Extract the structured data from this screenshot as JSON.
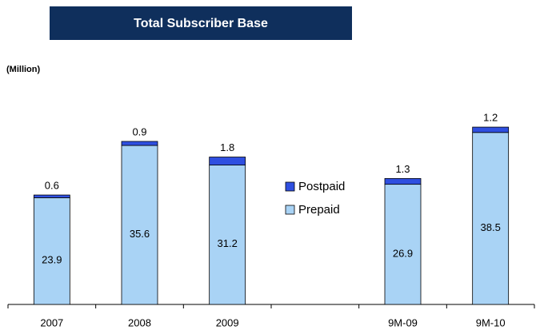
{
  "chart_data": {
    "type": "stacked-bar",
    "title": "Total Subscriber Base",
    "unit_label": "(Million)",
    "categories": [
      "2007",
      "2008",
      "2009",
      null,
      "9M-09",
      "9M-10"
    ],
    "series": [
      {
        "name": "Prepaid",
        "color": "#a9d3f5",
        "values": [
          23.9,
          35.6,
          31.2,
          null,
          26.9,
          38.5
        ]
      },
      {
        "name": "Postpaid",
        "color": "#2f4fe0",
        "values": [
          0.6,
          0.9,
          1.8,
          null,
          1.3,
          1.2
        ]
      }
    ]
  }
}
